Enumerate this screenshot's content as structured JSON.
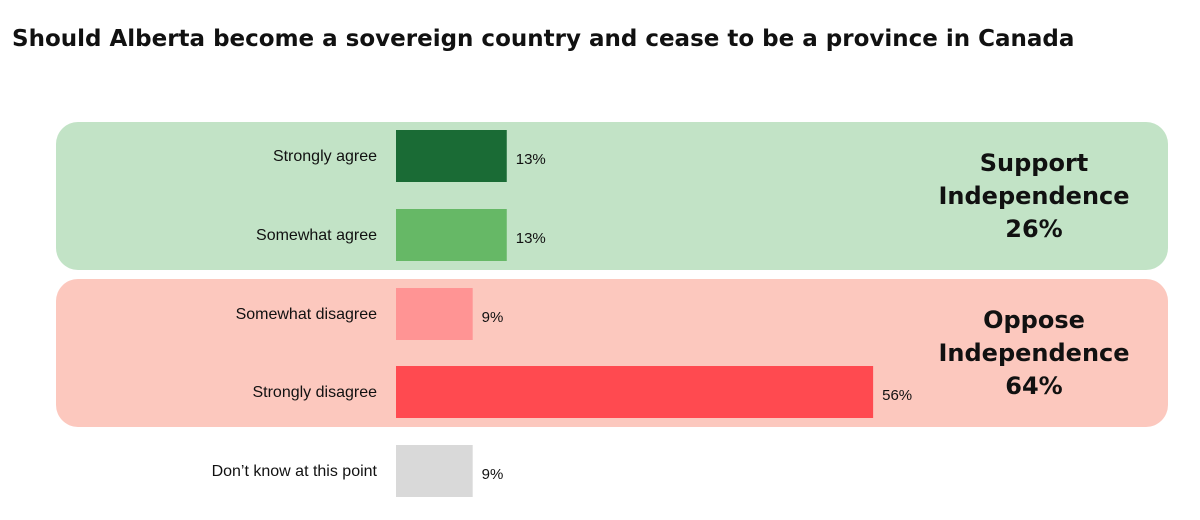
{
  "chart_data": {
    "type": "bar",
    "orientation": "horizontal",
    "title": "Should Alberta become a sovereign country and cease to be a province in Canada",
    "categories": [
      "Strongly agree",
      "Somewhat agree",
      "Somewhat disagree",
      "Strongly disagree",
      "Don’t know at this point"
    ],
    "values": [
      13,
      13,
      9,
      56,
      9
    ],
    "value_labels": [
      "13%",
      "13%",
      "9%",
      "56%",
      "9%"
    ],
    "bar_colors": [
      "#1a6b35",
      "#66b866",
      "#ff9494",
      "#ff4a50",
      "#d9d9d9"
    ],
    "xlim": [
      0,
      100
    ],
    "groups": [
      {
        "name": "support",
        "line1": "Support",
        "line2": "Independence",
        "line3": "26%",
        "value": 26,
        "color": "#c2e3c6",
        "categories": [
          0,
          1
        ]
      },
      {
        "name": "oppose",
        "line1": "Oppose",
        "line2": "Independence",
        "line3": "64%",
        "value": 64,
        "color": "#fcc8be",
        "categories": [
          2,
          3
        ]
      }
    ]
  }
}
